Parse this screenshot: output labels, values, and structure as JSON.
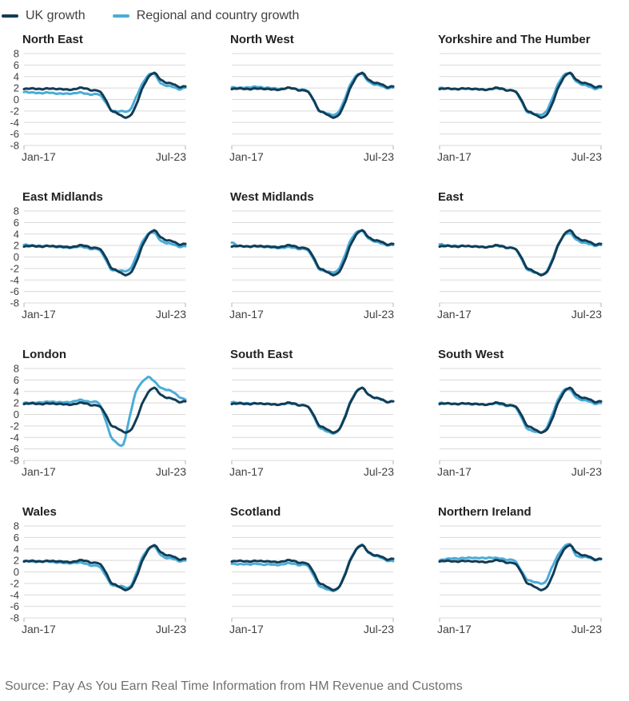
{
  "legend": {
    "items": [
      {
        "label": "UK growth",
        "color": "#113c56"
      },
      {
        "label": "Regional and country growth",
        "color": "#4aacd8"
      }
    ]
  },
  "source": "Source: Pay As You Earn Real Time Information from HM Revenue and Customs",
  "chart_data": {
    "type": "line",
    "layout": "small-multiples 3 columns x 4 rows",
    "grid": "horizontal gridlines on",
    "legend_position": "top-left",
    "ylim": [
      -8,
      8
    ],
    "yticks": [
      8,
      6,
      4,
      2,
      0,
      -2,
      -4,
      -6,
      -8
    ],
    "x_tick_labels": [
      "Jan-17",
      "Jul-23"
    ],
    "x": [
      "Jan-17",
      "Apr-17",
      "Jul-17",
      "Oct-17",
      "Jan-18",
      "Apr-18",
      "Jul-18",
      "Oct-18",
      "Jan-19",
      "Apr-19",
      "Jul-19",
      "Oct-19",
      "Jan-20",
      "Apr-20",
      "Jul-20",
      "Oct-20",
      "Jan-21",
      "Apr-21",
      "Jul-21",
      "Oct-21",
      "Jan-22",
      "Apr-22",
      "Jul-22",
      "Oct-22",
      "Jan-23",
      "Apr-23",
      "Jul-23"
    ],
    "uk_series": {
      "name": "UK growth",
      "color": "#113c56",
      "values": [
        1.8,
        1.9,
        1.9,
        1.8,
        1.9,
        1.9,
        1.8,
        1.7,
        1.8,
        2.0,
        1.9,
        1.6,
        1.5,
        0.3,
        -1.8,
        -2.4,
        -3.0,
        -2.9,
        -1.2,
        1.8,
        3.8,
        4.6,
        3.5,
        2.9,
        2.7,
        2.2,
        2.3
      ]
    },
    "regional_series_name": "Regional and country growth",
    "regional_color": "#4aacd8",
    "panels": [
      {
        "title": "North East",
        "slug": "north-east",
        "values": [
          1.3,
          1.2,
          1.2,
          1.1,
          1.2,
          1.1,
          1.0,
          1.0,
          1.1,
          1.2,
          1.0,
          0.9,
          0.9,
          -0.2,
          -1.8,
          -2.1,
          -2.0,
          -1.9,
          0.2,
          2.6,
          4.2,
          4.4,
          2.9,
          2.4,
          2.2,
          1.8,
          2.1
        ]
      },
      {
        "title": "North West",
        "slug": "north-west",
        "values": [
          2.1,
          2.0,
          2.1,
          2.1,
          2.2,
          2.1,
          2.0,
          1.9,
          1.9,
          2.0,
          1.9,
          1.7,
          1.6,
          0.2,
          -1.9,
          -2.3,
          -2.6,
          -2.4,
          -0.5,
          2.4,
          4.1,
          4.4,
          3.2,
          2.6,
          2.4,
          2.0,
          2.1
        ]
      },
      {
        "title": "Yorkshire and The Humber",
        "slug": "yorkshire-and-the-humber",
        "values": [
          2.0,
          1.9,
          1.9,
          1.8,
          1.9,
          1.9,
          1.8,
          1.7,
          1.8,
          1.9,
          1.8,
          1.6,
          1.5,
          0.1,
          -2.0,
          -2.5,
          -2.6,
          -2.3,
          -0.3,
          2.5,
          4.2,
          4.5,
          3.2,
          2.6,
          2.3,
          1.9,
          2.1
        ]
      },
      {
        "title": "East Midlands",
        "slug": "east-midlands",
        "values": [
          2.1,
          2.0,
          2.0,
          1.9,
          1.9,
          1.8,
          1.7,
          1.6,
          1.7,
          1.8,
          1.6,
          1.4,
          1.3,
          -0.1,
          -2.1,
          -2.4,
          -2.4,
          -2.2,
          -0.2,
          2.5,
          4.0,
          4.2,
          2.9,
          2.4,
          2.2,
          1.8,
          1.9
        ]
      },
      {
        "title": "West Midlands",
        "slug": "west-midlands",
        "values": [
          2.5,
          1.9,
          1.9,
          1.8,
          1.8,
          1.8,
          1.7,
          1.6,
          1.6,
          1.7,
          1.6,
          1.4,
          1.3,
          0.0,
          -2.0,
          -2.5,
          -2.6,
          -2.4,
          -0.4,
          2.6,
          4.2,
          4.5,
          3.3,
          2.7,
          2.4,
          2.1,
          2.1
        ]
      },
      {
        "title": "East",
        "slug": "east",
        "values": [
          2.2,
          2.0,
          2.0,
          1.9,
          1.9,
          1.9,
          1.8,
          1.7,
          1.8,
          1.9,
          1.8,
          1.6,
          1.5,
          0.1,
          -2.0,
          -2.6,
          -2.9,
          -2.8,
          -0.9,
          2.0,
          3.7,
          4.1,
          3.1,
          2.5,
          2.3,
          2.0,
          2.1
        ]
      },
      {
        "title": "London",
        "slug": "london",
        "values": [
          2.0,
          2.0,
          2.1,
          2.1,
          2.2,
          2.2,
          2.1,
          2.1,
          2.3,
          2.5,
          2.3,
          2.2,
          2.0,
          -0.5,
          -3.8,
          -5.0,
          -5.2,
          -0.5,
          3.8,
          5.6,
          6.5,
          5.7,
          4.7,
          4.3,
          3.9,
          3.1,
          2.6
        ]
      },
      {
        "title": "South East",
        "slug": "south-east",
        "values": [
          2.1,
          2.0,
          2.0,
          1.9,
          1.9,
          1.9,
          1.8,
          1.7,
          1.8,
          1.9,
          1.8,
          1.6,
          1.5,
          0.1,
          -2.1,
          -2.8,
          -3.2,
          -3.0,
          -1.0,
          2.0,
          3.9,
          4.6,
          3.5,
          2.9,
          2.6,
          2.2,
          2.3
        ]
      },
      {
        "title": "South West",
        "slug": "south-west",
        "values": [
          2.0,
          1.9,
          1.9,
          1.8,
          1.9,
          1.8,
          1.8,
          1.7,
          1.8,
          1.9,
          1.7,
          1.5,
          1.4,
          -0.1,
          -2.3,
          -2.9,
          -3.1,
          -2.7,
          -0.5,
          2.4,
          4.2,
          4.3,
          3.0,
          2.5,
          2.3,
          1.9,
          2.0
        ]
      },
      {
        "title": "Wales",
        "slug": "wales",
        "values": [
          1.9,
          1.8,
          1.8,
          1.8,
          1.8,
          1.7,
          1.6,
          1.5,
          1.6,
          1.6,
          1.4,
          1.1,
          1.0,
          -0.3,
          -2.1,
          -2.5,
          -2.5,
          -2.7,
          -0.6,
          2.4,
          4.0,
          4.4,
          3.0,
          2.4,
          2.3,
          1.9,
          2.0
        ]
      },
      {
        "title": "Scotland",
        "slug": "scotland",
        "values": [
          1.4,
          1.3,
          1.4,
          1.3,
          1.4,
          1.3,
          1.3,
          1.2,
          1.3,
          1.5,
          1.4,
          1.2,
          1.2,
          -0.2,
          -2.3,
          -2.9,
          -3.2,
          -3.0,
          -1.0,
          2.0,
          3.9,
          4.7,
          3.4,
          2.8,
          2.5,
          2.0,
          1.9
        ]
      },
      {
        "title": "Northern Ireland",
        "slug": "northern-ireland",
        "values": [
          2.0,
          2.2,
          2.4,
          2.3,
          2.4,
          2.5,
          2.4,
          2.4,
          2.5,
          2.4,
          2.3,
          2.1,
          2.0,
          0.5,
          -1.2,
          -1.7,
          -1.9,
          -1.8,
          0.5,
          2.8,
          4.3,
          4.8,
          2.9,
          2.6,
          2.5,
          2.1,
          2.2
        ]
      }
    ]
  }
}
